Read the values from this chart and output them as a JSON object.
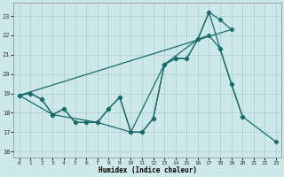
{
  "xlabel": "Humidex (Indice chaleur)",
  "bg_color": "#cce8e8",
  "grid_color": "#aacece",
  "line_color": "#1a6b6b",
  "xlim": [
    -0.5,
    23.5
  ],
  "ylim": [
    15.7,
    23.7
  ],
  "yticks": [
    16,
    17,
    18,
    19,
    20,
    21,
    22,
    23
  ],
  "xticks": [
    0,
    1,
    2,
    3,
    4,
    5,
    6,
    7,
    8,
    9,
    10,
    11,
    12,
    13,
    14,
    15,
    16,
    17,
    18,
    19,
    20,
    21,
    22,
    23
  ],
  "series_zigzag_x": [
    0,
    1,
    2,
    3,
    4,
    5,
    6,
    7,
    8,
    9,
    10,
    11,
    12,
    13,
    14,
    15,
    16,
    17,
    18,
    19,
    20
  ],
  "series_zigzag_y": [
    18.9,
    19.0,
    18.7,
    17.9,
    18.2,
    17.5,
    17.5,
    17.5,
    18.2,
    18.8,
    17.0,
    17.0,
    17.7,
    20.5,
    20.8,
    20.8,
    21.8,
    22.0,
    21.3,
    19.5,
    17.8
  ],
  "series_peak_x": [
    0,
    1,
    2,
    3,
    4,
    5,
    6,
    7,
    8,
    9,
    10,
    11,
    12,
    13,
    14,
    15,
    16,
    17,
    18,
    19
  ],
  "series_peak_y": [
    18.9,
    19.0,
    18.7,
    17.9,
    18.2,
    17.5,
    17.5,
    17.5,
    18.2,
    18.8,
    17.0,
    17.0,
    17.7,
    20.5,
    20.8,
    20.8,
    21.8,
    23.2,
    22.8,
    22.3
  ],
  "series_triangle_x": [
    0,
    3,
    7,
    10,
    13,
    16,
    17,
    18,
    19,
    20,
    23
  ],
  "series_triangle_y": [
    18.9,
    17.9,
    17.5,
    17.0,
    20.5,
    21.8,
    23.2,
    21.3,
    19.5,
    17.8,
    16.5
  ],
  "series_trend_x": [
    0,
    19
  ],
  "series_trend_y": [
    18.9,
    22.3
  ]
}
